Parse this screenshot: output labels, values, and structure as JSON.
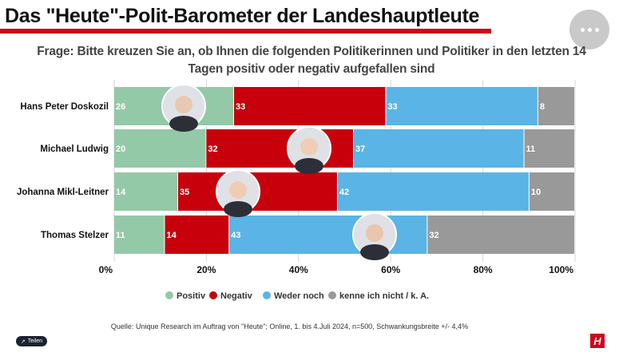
{
  "header": {
    "title": "Das \"Heute\"-Polit-Barometer der Landeshauptleute",
    "more_button": "more-options"
  },
  "chart_data": {
    "type": "bar",
    "orientation": "horizontal",
    "stacked": "percent",
    "title": "Frage: Bitte kreuzen Sie an, ob Ihnen die folgenden Politikerinnen und Politiker in den letzten 14 Tagen positiv oder negativ aufgefallen sind",
    "categories": [
      "Hans Peter Doskozil",
      "Michael Ludwig",
      "Johanna Mikl-Leitner",
      "Thomas Stelzer"
    ],
    "series": [
      {
        "name": "Positiv",
        "color": "#93c9a6",
        "values": [
          26,
          20,
          14,
          11
        ]
      },
      {
        "name": "Negativ",
        "color": "#c8000c",
        "values": [
          33,
          32,
          35,
          14
        ]
      },
      {
        "name": "Weder noch",
        "color": "#5ab4e5",
        "values": [
          33,
          37,
          42,
          43
        ]
      },
      {
        "name": "kenne ich nicht / k. A.",
        "color": "#999999",
        "values": [
          8,
          11,
          10,
          32
        ]
      }
    ],
    "xticks": [
      "0%",
      "20%",
      "40%",
      "60%",
      "80%",
      "100%"
    ],
    "xlim": [
      0,
      100
    ],
    "legend_position": "bottom"
  },
  "source": "Quelle: Unique Research im Auftrag von \"Heute\";  Online, 1. bis 4.Juli 2024, n=500, Schwankungsbreite +/- 4,4%",
  "share_label": "Teilen",
  "logo_letter": "H"
}
